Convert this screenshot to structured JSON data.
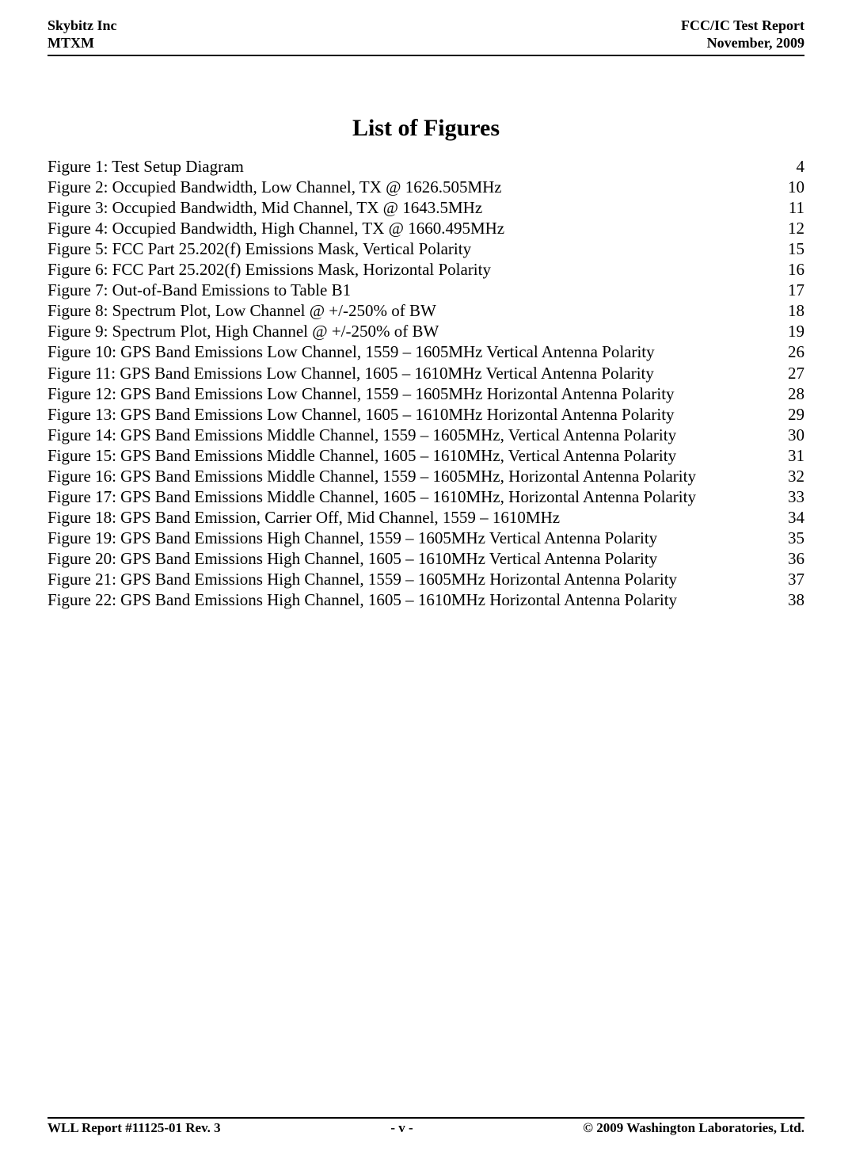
{
  "header": {
    "left_top": "Skybitz Inc",
    "left_bottom": "MTXM",
    "right_top": "FCC/IC Test Report",
    "right_bottom": "November, 2009"
  },
  "title": "List of Figures",
  "figures": [
    {
      "label": "Figure 1: Test Setup Diagram",
      "page": "4"
    },
    {
      "label": "Figure 2: Occupied Bandwidth, Low Channel, TX @ 1626.505MHz",
      "page": "10"
    },
    {
      "label": "Figure 3: Occupied Bandwidth, Mid Channel, TX @ 1643.5MHz",
      "page": "11"
    },
    {
      "label": "Figure 4: Occupied Bandwidth, High Channel, TX @ 1660.495MHz",
      "page": "12"
    },
    {
      "label": "Figure 5: FCC Part 25.202(f) Emissions Mask, Vertical Polarity",
      "page": "15"
    },
    {
      "label": "Figure 6: FCC Part 25.202(f) Emissions Mask, Horizontal Polarity",
      "page": "16"
    },
    {
      "label": "Figure 7: Out-of-Band Emissions to Table B1",
      "page": "17"
    },
    {
      "label": "Figure 8: Spectrum Plot, Low Channel @ +/-250% of BW",
      "page": "18"
    },
    {
      "label": "Figure 9: Spectrum Plot, High Channel @ +/-250% of BW",
      "page": "19"
    },
    {
      "label": "Figure 10: GPS Band Emissions Low Channel, 1559 – 1605MHz Vertical Antenna Polarity",
      "page": "26"
    },
    {
      "label": "Figure 11: GPS Band Emissions Low Channel, 1605 – 1610MHz Vertical Antenna Polarity",
      "page": "27"
    },
    {
      "label": "Figure 12: GPS Band Emissions Low Channel, 1559 – 1605MHz Horizontal Antenna Polarity",
      "page": "28"
    },
    {
      "label": "Figure 13: GPS Band Emissions Low Channel, 1605 – 1610MHz Horizontal Antenna Polarity",
      "page": "29"
    },
    {
      "label": "Figure 14: GPS Band Emissions Middle Channel, 1559 – 1605MHz, Vertical Antenna Polarity",
      "page": "30"
    },
    {
      "label": "Figure 15: GPS Band Emissions Middle Channel, 1605 – 1610MHz, Vertical Antenna Polarity",
      "page": "31"
    },
    {
      "label": "Figure 16: GPS Band Emissions Middle Channel, 1559 – 1605MHz, Horizontal Antenna Polarity",
      "page": "32"
    },
    {
      "label": "Figure 17: GPS Band Emissions Middle Channel, 1605 – 1610MHz, Horizontal Antenna Polarity",
      "page": "33"
    },
    {
      "label": "Figure 18: GPS Band Emission, Carrier Off, Mid Channel, 1559 – 1610MHz",
      "page": "34"
    },
    {
      "label": "Figure 19: GPS Band Emissions High Channel, 1559 – 1605MHz Vertical Antenna Polarity",
      "page": "35"
    },
    {
      "label": "Figure 20: GPS Band Emissions High Channel, 1605 – 1610MHz Vertical Antenna Polarity",
      "page": "36"
    },
    {
      "label": "Figure 21: GPS Band Emissions High Channel, 1559 – 1605MHz Horizontal Antenna Polarity",
      "page": "37"
    },
    {
      "label": "Figure 22: GPS Band Emissions High Channel, 1605 – 1610MHz Horizontal Antenna Polarity",
      "page": "38"
    }
  ],
  "footer": {
    "left": "WLL Report #11125-01 Rev. 3",
    "center": "- v -",
    "right": "© 2009 Washington Laboratories, Ltd."
  }
}
